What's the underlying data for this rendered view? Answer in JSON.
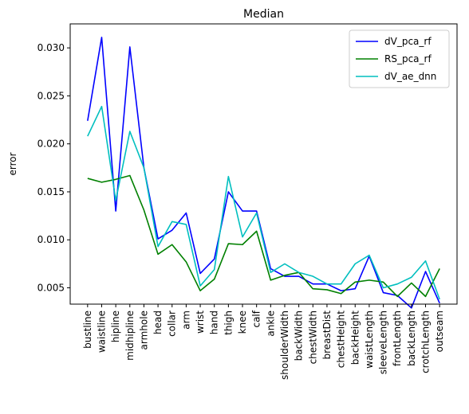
{
  "chart_data": {
    "type": "line",
    "title": "Median",
    "xlabel": "",
    "ylabel": "error",
    "ylim": [
      0.0033,
      0.0325
    ],
    "yticks": [
      "0.005",
      "0.010",
      "0.015",
      "0.020",
      "0.025",
      "0.030"
    ],
    "ytick_values": [
      0.005,
      0.01,
      0.015,
      0.02,
      0.025,
      0.03
    ],
    "legend_position": "top-right",
    "grid": false,
    "categories": [
      "bustline",
      "waistline",
      "hipline",
      "midhipline",
      "armhole",
      "head",
      "collar",
      "arm",
      "wrist",
      "hand",
      "thigh",
      "knee",
      "calf",
      "ankle",
      "shoulderWidth",
      "backWidth",
      "chestWidth",
      "breastDist",
      "chestHeight",
      "backHeight",
      "waistLength",
      "sleeveLength",
      "frontLength",
      "backLength",
      "crotchLength",
      "outseam"
    ],
    "series": [
      {
        "name": "dV_pca_rf",
        "color": "#0000ff",
        "values": [
          0.0224,
          0.0311,
          0.013,
          0.0301,
          0.0175,
          0.0101,
          0.011,
          0.0128,
          0.0065,
          0.008,
          0.015,
          0.013,
          0.013,
          0.007,
          0.0062,
          0.0062,
          0.0054,
          0.0054,
          0.0047,
          0.0049,
          0.0083,
          0.0045,
          0.0042,
          0.0029,
          0.0067,
          0.0034
        ]
      },
      {
        "name": "RS_pca_rf",
        "color": "#008000",
        "values": [
          0.0164,
          0.016,
          0.0163,
          0.0167,
          0.0131,
          0.0085,
          0.0095,
          0.0077,
          0.0047,
          0.0059,
          0.0096,
          0.0095,
          0.0109,
          0.0058,
          0.0063,
          0.0066,
          0.0049,
          0.0048,
          0.0044,
          0.0056,
          0.0058,
          0.0056,
          0.0041,
          0.0055,
          0.0041,
          0.007
        ]
      },
      {
        "name": "dV_ae_dnn",
        "color": "#00bfbf",
        "values": [
          0.0208,
          0.0239,
          0.0141,
          0.0213,
          0.0175,
          0.0093,
          0.0119,
          0.0116,
          0.0052,
          0.0069,
          0.0166,
          0.0103,
          0.0128,
          0.0066,
          0.0075,
          0.0066,
          0.0062,
          0.0054,
          0.0054,
          0.0075,
          0.0084,
          0.005,
          0.0054,
          0.0061,
          0.0078,
          0.0038
        ]
      }
    ]
  }
}
